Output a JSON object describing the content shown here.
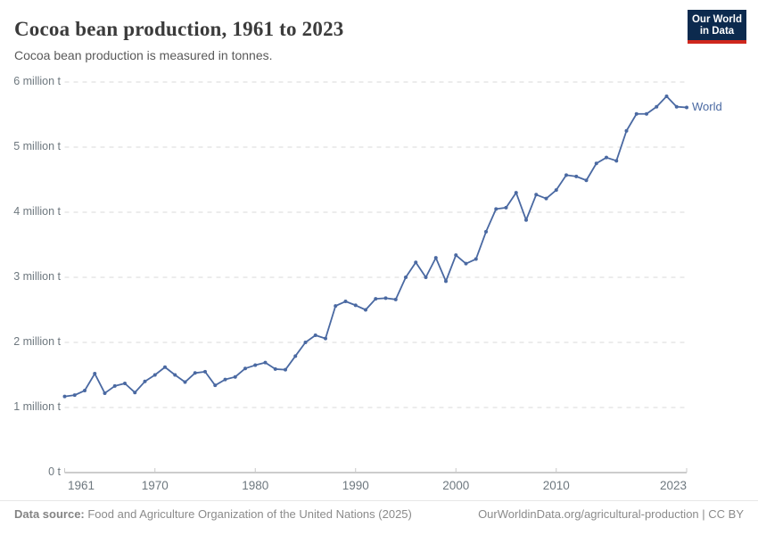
{
  "header": {
    "title": "Cocoa bean production, 1961 to 2023",
    "subtitle": "Cocoa bean production is measured in tonnes.",
    "logo": {
      "line1": "Our World",
      "line2": "in Data"
    }
  },
  "chart_data": {
    "type": "line",
    "title": "Cocoa bean production, 1961 to 2023",
    "unit": "tonnes",
    "xlabel": "",
    "ylabel": "",
    "xlim": [
      1961,
      2023
    ],
    "ylim": [
      0,
      6000000
    ],
    "grid": "horizontal-dashed",
    "legend_position": "end-of-line-label",
    "xticks": [
      1961,
      1970,
      1980,
      1990,
      2000,
      2010,
      2023
    ],
    "yticks": [
      {
        "value": 0,
        "label": "0 t"
      },
      {
        "value": 1000000,
        "label": "1 million t"
      },
      {
        "value": 2000000,
        "label": "2 million t"
      },
      {
        "value": 3000000,
        "label": "3 million t"
      },
      {
        "value": 4000000,
        "label": "4 million t"
      },
      {
        "value": 5000000,
        "label": "5 million t"
      },
      {
        "value": 6000000,
        "label": "6 million t"
      }
    ],
    "series": [
      {
        "name": "World",
        "color": "#4a69a2",
        "x": [
          1961,
          1962,
          1963,
          1964,
          1965,
          1966,
          1967,
          1968,
          1969,
          1970,
          1971,
          1972,
          1973,
          1974,
          1975,
          1976,
          1977,
          1978,
          1979,
          1980,
          1981,
          1982,
          1983,
          1984,
          1985,
          1986,
          1987,
          1988,
          1989,
          1990,
          1991,
          1992,
          1993,
          1994,
          1995,
          1996,
          1997,
          1998,
          1999,
          2000,
          2001,
          2002,
          2003,
          2004,
          2005,
          2006,
          2007,
          2008,
          2009,
          2010,
          2011,
          2012,
          2013,
          2014,
          2015,
          2016,
          2017,
          2018,
          2019,
          2020,
          2021,
          2022,
          2023
        ],
        "values": [
          1170000,
          1190000,
          1260000,
          1520000,
          1220000,
          1330000,
          1370000,
          1230000,
          1400000,
          1500000,
          1620000,
          1500000,
          1390000,
          1530000,
          1550000,
          1340000,
          1430000,
          1470000,
          1600000,
          1650000,
          1690000,
          1590000,
          1580000,
          1790000,
          2000000,
          2110000,
          2060000,
          2560000,
          2630000,
          2570000,
          2500000,
          2670000,
          2680000,
          2660000,
          3000000,
          3230000,
          3000000,
          3300000,
          2940000,
          3340000,
          3210000,
          3280000,
          3700000,
          4050000,
          4070000,
          4300000,
          3880000,
          4270000,
          4210000,
          4340000,
          4570000,
          4550000,
          4490000,
          4750000,
          4840000,
          4790000,
          5250000,
          5510000,
          5510000,
          5620000,
          5780000,
          5620000,
          5610000
        ]
      }
    ],
    "colors": {
      "line": "#4a69a2",
      "gridline": "#dadada",
      "axis": "#9a9a9a",
      "tick": "#c9c9c9",
      "tick_text": "#6e787f"
    }
  },
  "footer": {
    "source_label": "Data source:",
    "source_text": " Food and Agriculture Organization of the United Nations (2025)",
    "credit": "OurWorldinData.org/agricultural-production | CC BY"
  }
}
